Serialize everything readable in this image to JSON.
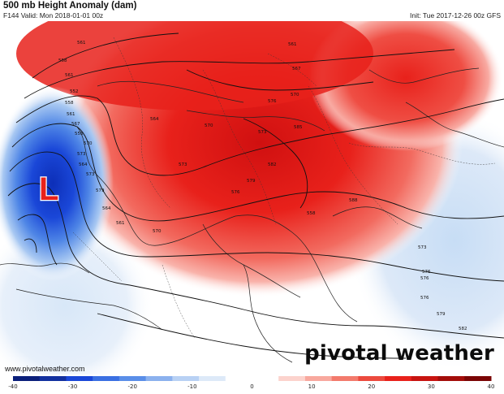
{
  "header": {
    "title": "500 mb Height Anomaly (dam)",
    "valid": "F144 Valid: Mon 2018-01-01 00z",
    "init": "Init: Tue 2017-12-26 00z GFS"
  },
  "low_marker": "L",
  "watermark": "pivotal weather",
  "url": "www.pivotalweather.com",
  "contour_labels": [
    "561",
    "558",
    "561",
    "567",
    "570",
    "561",
    "576",
    "570",
    "573",
    "564",
    "552",
    "558",
    "561",
    "567",
    "558",
    "570",
    "573",
    "564",
    "573",
    "579",
    "564",
    "561",
    "570",
    "573",
    "576",
    "579",
    "582",
    "585",
    "558",
    "588",
    "573",
    "576",
    "576",
    "576",
    "579",
    "582"
  ],
  "colorbar": {
    "ticks": [
      "-40",
      "-30",
      "-20",
      "-10",
      "0",
      "10",
      "20",
      "30",
      "40"
    ]
  },
  "colors": {
    "positive": "#e8211b",
    "negative": "#1a3fd0",
    "neutral": "#ffffff",
    "coast": "#222222",
    "contour": "#111111"
  }
}
